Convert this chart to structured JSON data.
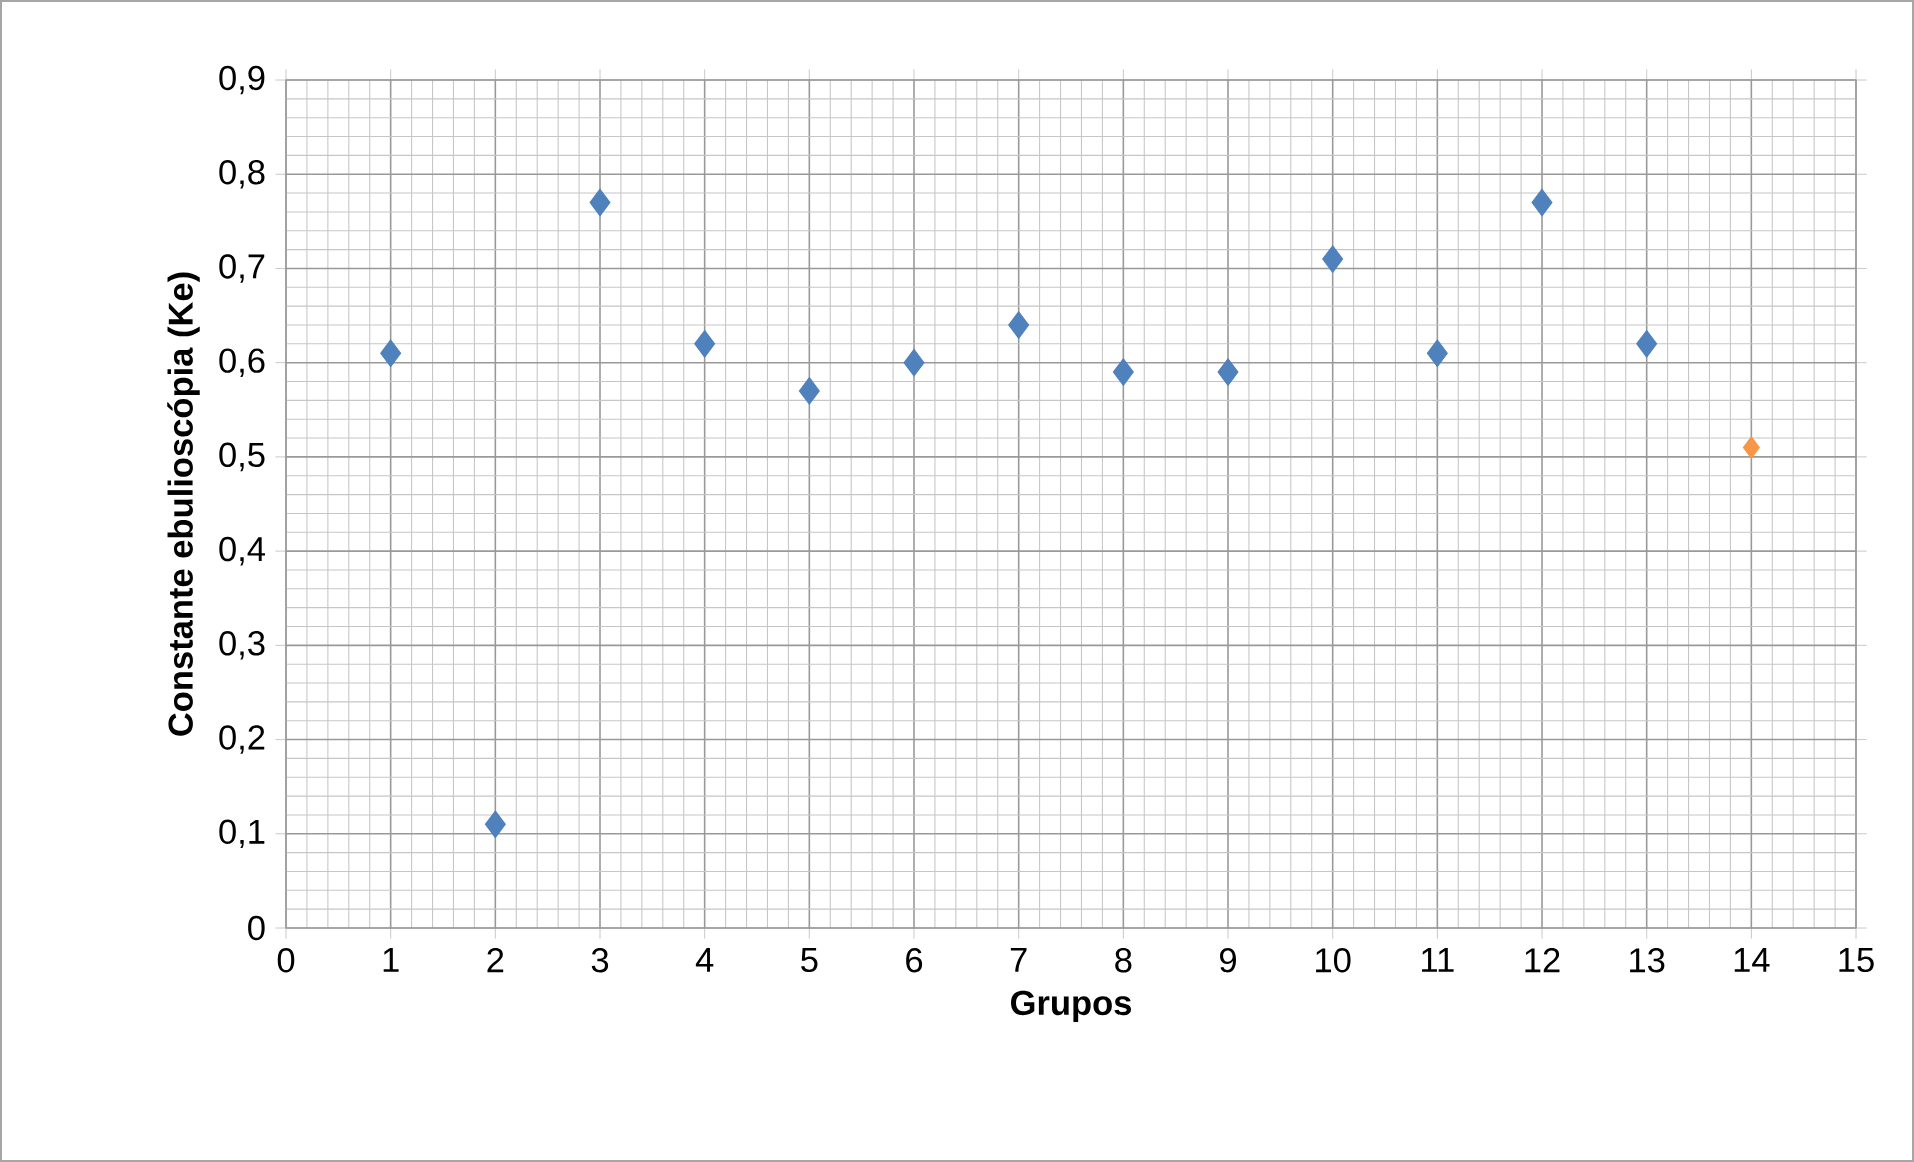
{
  "chart_data": {
    "type": "scatter",
    "xlabel": "Grupos",
    "ylabel": "Constante ebulioscópia (Ke)",
    "series": [
      {
        "color": "#4f81bd",
        "x": [
          1,
          2,
          3,
          4,
          5,
          6,
          7,
          8,
          9,
          10,
          11,
          12,
          13
        ],
        "values": [
          0.61,
          0.11,
          0.77,
          0.62,
          0.57,
          0.6,
          0.64,
          0.59,
          0.59,
          0.71,
          0.61,
          0.77,
          0.62
        ]
      },
      {
        "color": "#f79646",
        "x": [
          14
        ],
        "values": [
          0.51
        ]
      }
    ],
    "xlim": [
      0,
      15
    ],
    "xticks": [
      0,
      1,
      2,
      3,
      4,
      5,
      6,
      7,
      8,
      9,
      10,
      11,
      12,
      13,
      14,
      15
    ],
    "ylim": [
      0,
      0.9
    ],
    "yticks": [
      0,
      {
        "value": 0.1,
        "label": "0,1"
      },
      {
        "value": 0.2,
        "label": "0,2"
      },
      {
        "value": 0.3,
        "label": "0,3"
      },
      {
        "value": 0.4,
        "label": "0,4"
      },
      {
        "value": 0.5,
        "label": "0,5"
      },
      {
        "value": 0.6,
        "label": "0,6"
      },
      {
        "value": 0.7,
        "label": "0,7"
      },
      {
        "value": 0.8,
        "label": "0,8"
      },
      {
        "value": 0.9,
        "label": "0,9"
      }
    ],
    "grid": true,
    "marker": "diamond"
  }
}
